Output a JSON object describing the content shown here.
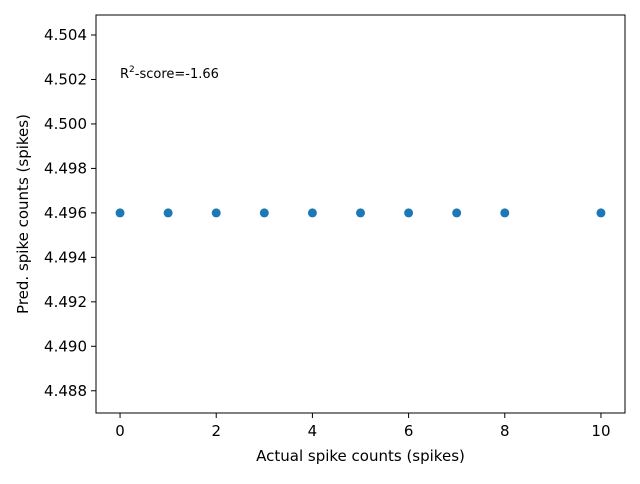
{
  "chart_data": {
    "type": "scatter",
    "title": "",
    "xlabel": "Actual spike counts (spikes)",
    "ylabel": "Pred. spike counts (spikes)",
    "xlim": [
      -0.5,
      10.5
    ],
    "ylim": [
      4.487,
      4.5049
    ],
    "xticks": [
      {
        "value": 0,
        "label": "0"
      },
      {
        "value": 2,
        "label": "2"
      },
      {
        "value": 4,
        "label": "4"
      },
      {
        "value": 6,
        "label": "6"
      },
      {
        "value": 8,
        "label": "8"
      },
      {
        "value": 10,
        "label": "10"
      }
    ],
    "yticks": [
      {
        "value": 4.488,
        "label": "4.488"
      },
      {
        "value": 4.49,
        "label": "4.490"
      },
      {
        "value": 4.492,
        "label": "4.492"
      },
      {
        "value": 4.494,
        "label": "4.494"
      },
      {
        "value": 4.496,
        "label": "4.496"
      },
      {
        "value": 4.498,
        "label": "4.498"
      },
      {
        "value": 4.5,
        "label": "4.500"
      },
      {
        "value": 4.502,
        "label": "4.502"
      },
      {
        "value": 4.504,
        "label": "4.504"
      }
    ],
    "points": [
      {
        "x": 0,
        "y": 4.496
      },
      {
        "x": 1,
        "y": 4.496
      },
      {
        "x": 2,
        "y": 4.496
      },
      {
        "x": 3,
        "y": 4.496
      },
      {
        "x": 4,
        "y": 4.496
      },
      {
        "x": 5,
        "y": 4.496
      },
      {
        "x": 6,
        "y": 4.496
      },
      {
        "x": 7,
        "y": 4.496
      },
      {
        "x": 8,
        "y": 4.496
      },
      {
        "x": 10,
        "y": 4.496
      }
    ],
    "annotation": {
      "prefix": "R",
      "superscript": "2",
      "suffix": "-score=-1.66"
    },
    "point_color": "#1f77b4",
    "grid": false,
    "legend": false
  }
}
